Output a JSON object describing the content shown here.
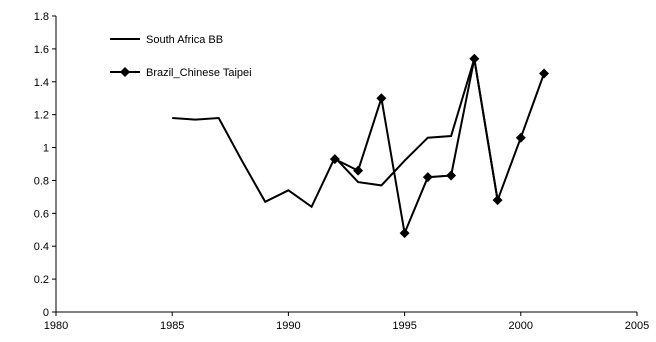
{
  "chart_data": {
    "type": "line",
    "title": "",
    "xlabel": "",
    "ylabel": "",
    "xlim": [
      1980,
      2005
    ],
    "ylim": [
      0,
      1.8
    ],
    "x_ticks": [
      "1980",
      "1985",
      "1990",
      "1995",
      "2000",
      "2005"
    ],
    "y_ticks": [
      "0",
      "0.2",
      "0.4",
      "0.6",
      "0.8",
      "1",
      "1.2",
      "1.4",
      "1.6",
      "1.8"
    ],
    "grid": false,
    "legend_position": "top-left",
    "series": [
      {
        "name": "South Africa BB",
        "marker": "none",
        "color": "#000000",
        "x": [
          1985,
          1986,
          1987,
          1988,
          1989,
          1990,
          1991,
          1992,
          1993,
          1994,
          1995,
          1996,
          1997,
          1998,
          1999
        ],
        "y": [
          1.18,
          1.17,
          1.18,
          0.92,
          0.67,
          0.74,
          0.64,
          0.94,
          0.79,
          0.77,
          0.92,
          1.06,
          1.07,
          1.54,
          0.68
        ]
      },
      {
        "name": "Brazil_Chinese Taipei",
        "marker": "diamond",
        "color": "#000000",
        "x": [
          1992,
          1993,
          1994,
          1995,
          1996,
          1997,
          1998,
          1999,
          2000,
          2001
        ],
        "y": [
          0.93,
          0.86,
          1.3,
          0.48,
          0.82,
          0.83,
          1.54,
          0.68,
          1.06,
          1.45
        ]
      }
    ]
  }
}
